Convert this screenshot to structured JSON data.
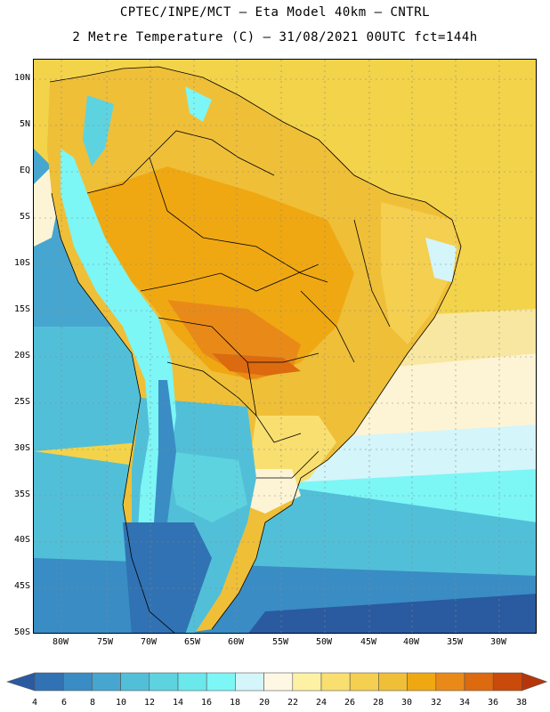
{
  "header": {
    "line1": "CPTEC/INPE/MCT –  Eta Model 40km – CNTRL",
    "line2": "2 Metre Temperature (C) – 31/08/2021 00UTC fct=144h"
  },
  "map": {
    "lat_labels": [
      "10N",
      "5N",
      "EQ",
      "5S",
      "10S",
      "15S",
      "20S",
      "25S",
      "30S",
      "35S",
      "40S",
      "45S",
      "50S"
    ],
    "lon_labels": [
      "80W",
      "75W",
      "70W",
      "65W",
      "60W",
      "55W",
      "50W",
      "45W",
      "40W",
      "35W",
      "30W"
    ],
    "region": "South America",
    "variable": "2 Metre Temperature (C)"
  },
  "legend": {
    "tick_labels": [
      "4",
      "6",
      "8",
      "10",
      "12",
      "14",
      "16",
      "18",
      "20",
      "22",
      "24",
      "26",
      "28",
      "30",
      "32",
      "34",
      "36",
      "38"
    ],
    "colors": [
      "#2a5aa0",
      "#3072b3",
      "#3a8cc4",
      "#47a6cf",
      "#52bfd8",
      "#5ed3e0",
      "#6ae8ec",
      "#7df6f6",
      "#d4f5fa",
      "#fdf7e3",
      "#fdf2a4",
      "#f8df70",
      "#f4cf50",
      "#efbf38",
      "#f0a812",
      "#e98a18",
      "#dd6a0e",
      "#c94a0a",
      "#b5360a"
    ]
  }
}
